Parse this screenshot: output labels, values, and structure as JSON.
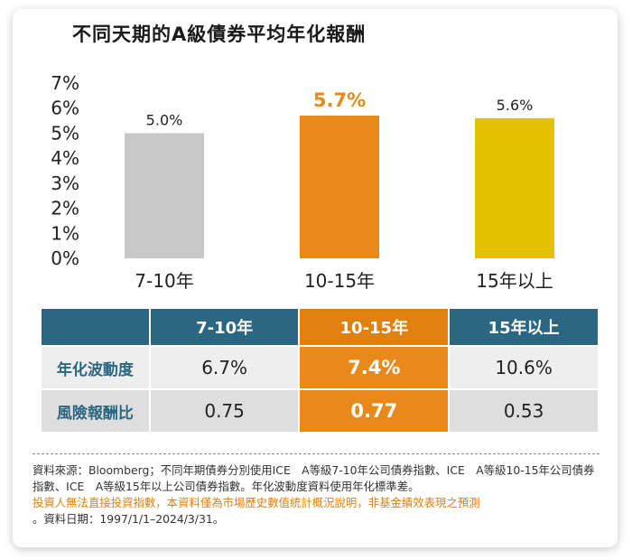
{
  "title": "不同天期的A級債券平均年化報酬",
  "chart_data": {
    "type": "bar",
    "title": "不同天期的A級債券平均年化報酬",
    "categories": [
      "7-10年",
      "10-15年",
      "15年以上"
    ],
    "values": [
      5.0,
      5.7,
      5.6
    ],
    "data_labels": [
      "5.0%",
      "5.7%",
      "5.6%"
    ],
    "highlight_index": 1,
    "bar_colors": [
      "#c8c8c8",
      "#e8891a",
      "#e3c000"
    ],
    "highlight_label_color": "#e58a14",
    "ylim": [
      0,
      7
    ],
    "yticks": [
      "0%",
      "1%",
      "2%",
      "3%",
      "4%",
      "5%",
      "6%",
      "7%"
    ],
    "grid": false,
    "xlabel": "",
    "ylabel": ""
  },
  "table": {
    "headers": [
      "",
      "7-10年",
      "10-15年",
      "15年以上"
    ],
    "rows": [
      {
        "label": "年化波動度",
        "values": [
          "6.7%",
          "7.4%",
          "10.6%"
        ]
      },
      {
        "label": "風險報酬比",
        "values": [
          "0.75",
          "0.77",
          "0.53"
        ]
      }
    ],
    "header_color": "#2b6781",
    "highlight_color": "#e8891a"
  },
  "notes": {
    "source": "資料來源：Bloomberg；不同年期債券分別使用ICE　A等級7-10年公司債券指數、ICE　A等級10-15年公司債券指數、ICE　A等級15年以上公司債券指數。年化波動度資料使用年化標準差。",
    "disclaimer": "投資人無法直接投資指數，本資料僅為市場歷史數值統計概況說明，非基金績效表現之預測",
    "date": "。資料日期：1997/1/1–2024/3/31。"
  }
}
